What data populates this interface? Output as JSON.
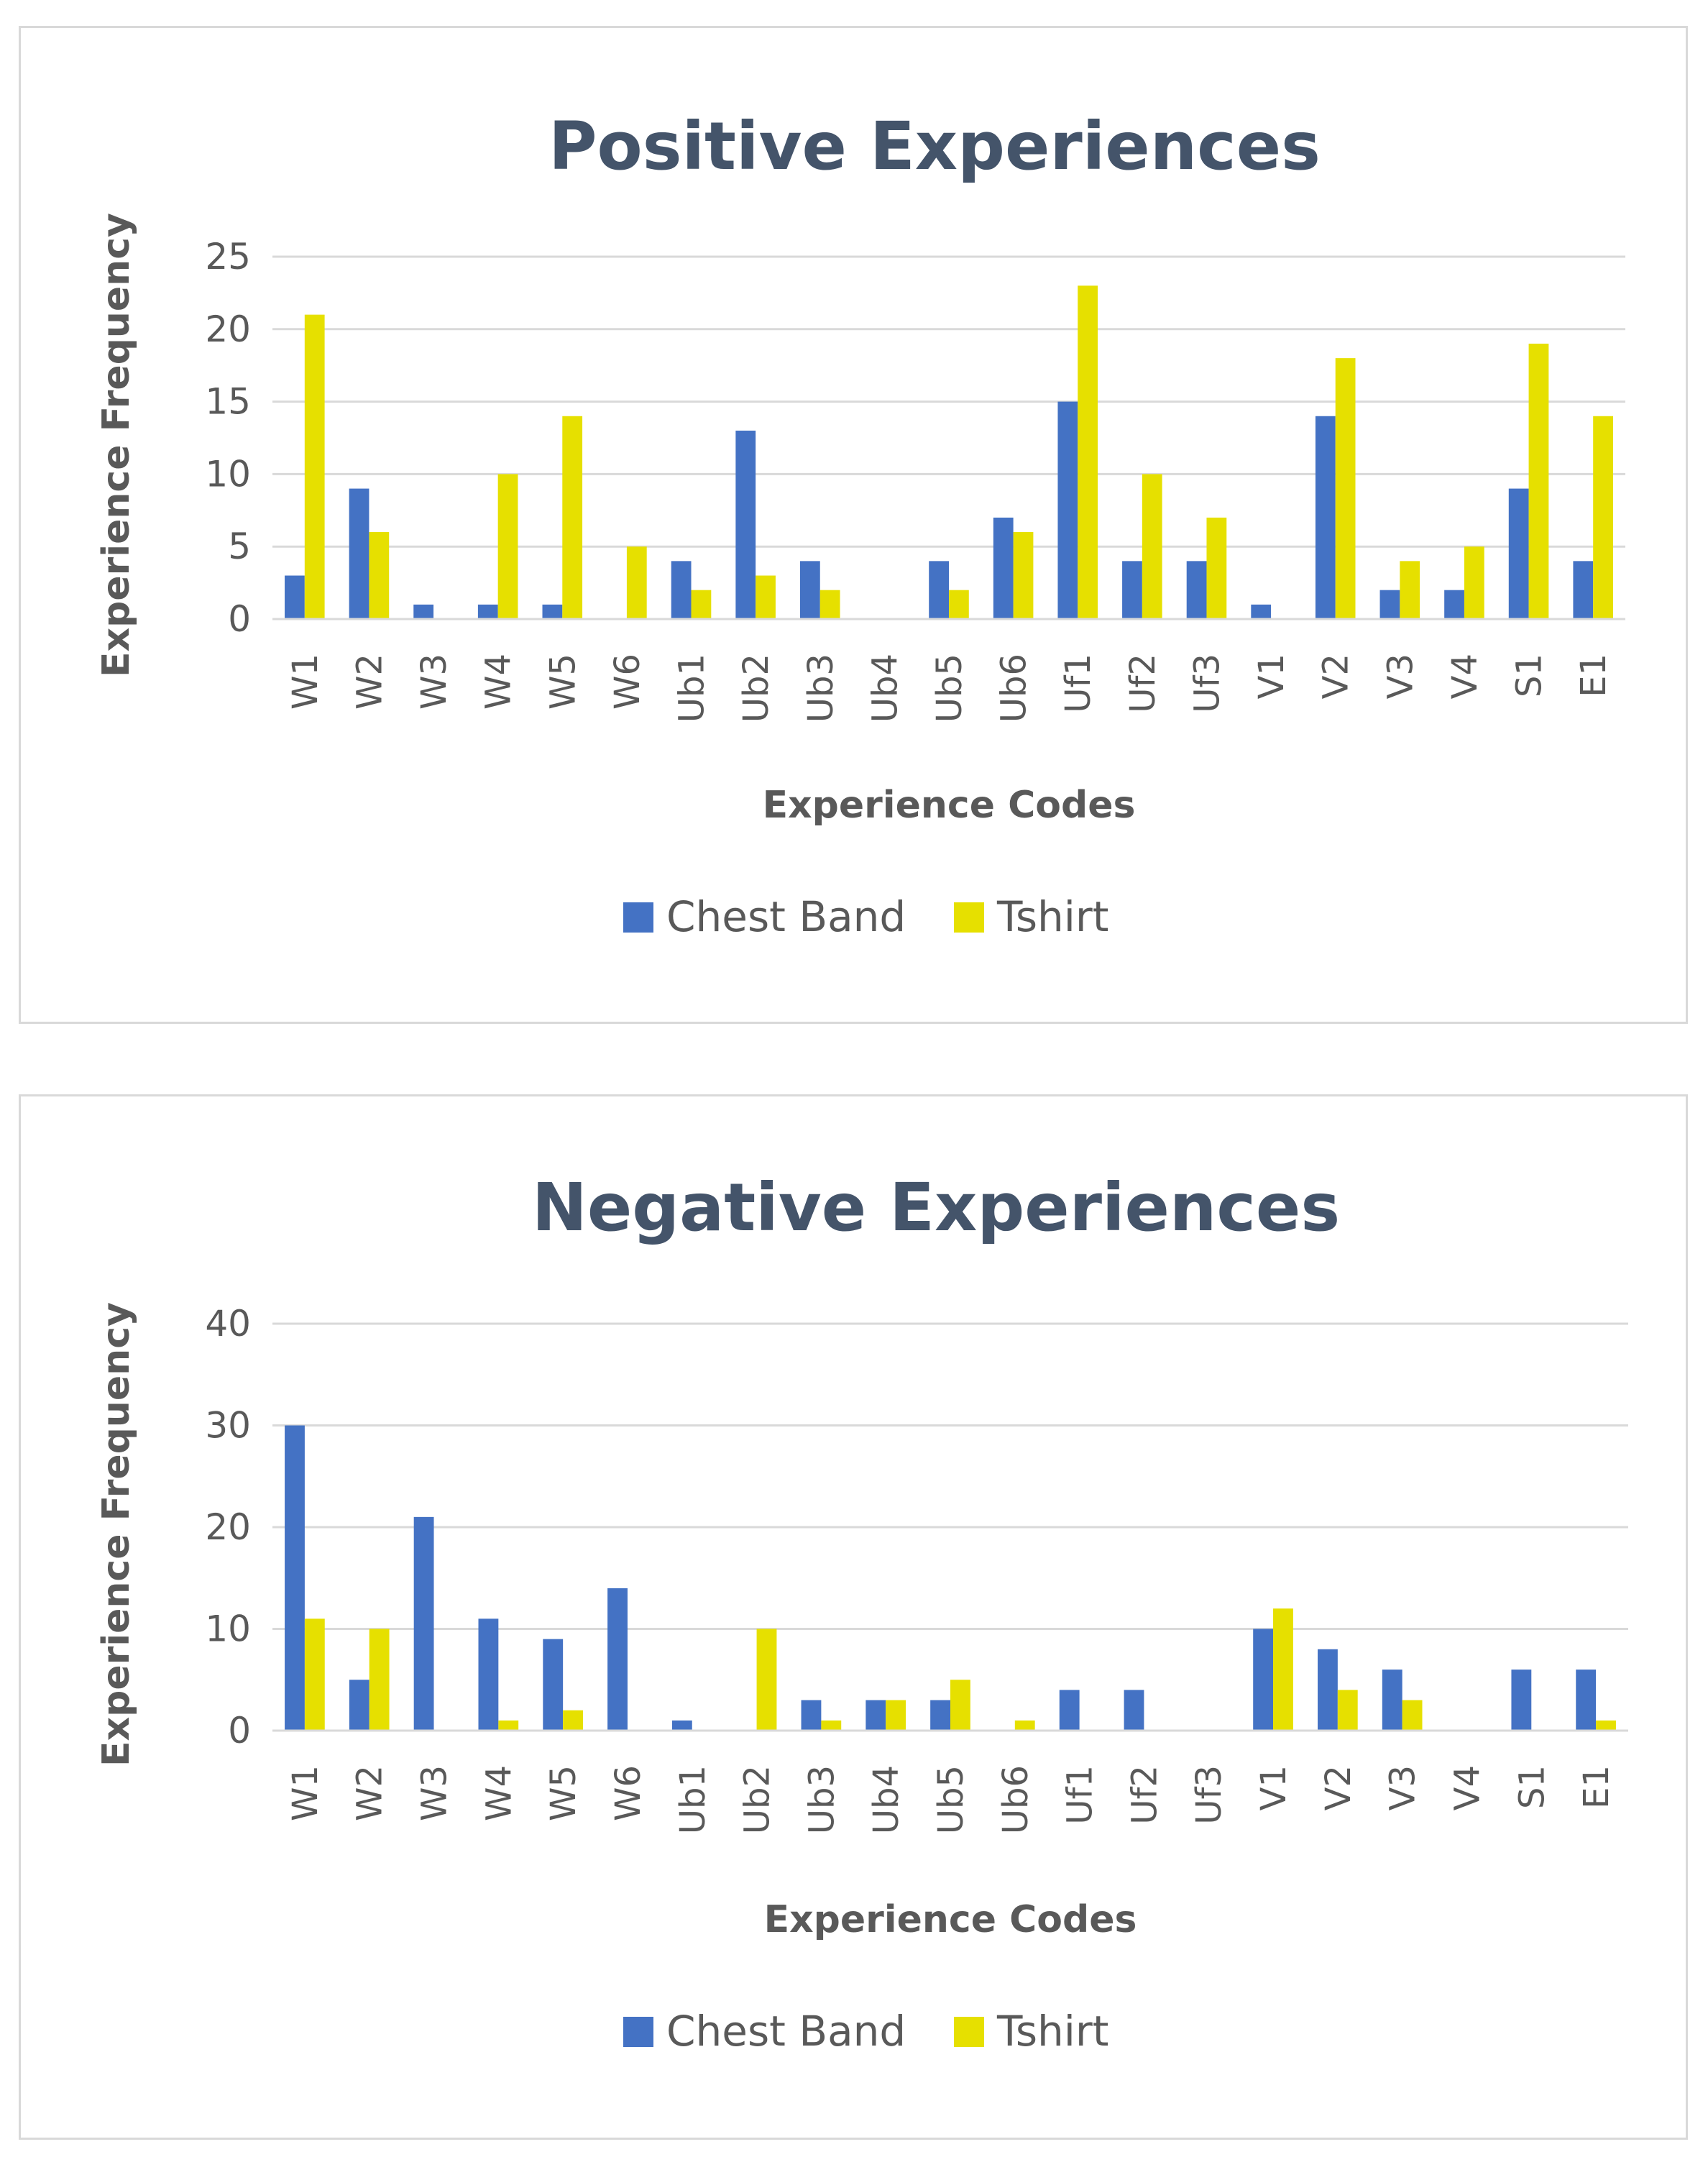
{
  "chart_data": [
    {
      "type": "bar",
      "title": "Positive Experiences",
      "xlabel": "Experience Codes",
      "ylabel": "Experience Frequency",
      "ylim": [
        0,
        25
      ],
      "yticks": [
        0,
        5,
        10,
        15,
        20,
        25
      ],
      "grid": true,
      "legend_position": "bottom",
      "categories": [
        "W1",
        "W2",
        "W3",
        "W4",
        "W5",
        "W6",
        "Ub1",
        "Ub2",
        "Ub3",
        "Ub4",
        "Ub5",
        "Ub6",
        "Uf1",
        "Uf2",
        "Uf3",
        "V1",
        "V2",
        "V3",
        "V4",
        "S1",
        "E1"
      ],
      "series": [
        {
          "name": "Chest Band",
          "color": "#4472c4",
          "values": [
            3,
            9,
            1,
            1,
            1,
            0,
            4,
            13,
            4,
            0,
            4,
            7,
            15,
            4,
            4,
            1,
            14,
            2,
            2,
            9,
            4
          ]
        },
        {
          "name": "Tshirt",
          "color": "#e6e000",
          "values": [
            21,
            6,
            0,
            10,
            14,
            5,
            2,
            3,
            2,
            0,
            2,
            6,
            23,
            10,
            7,
            0,
            18,
            4,
            5,
            19,
            14
          ]
        }
      ]
    },
    {
      "type": "bar",
      "title": "Negative Experiences",
      "xlabel": "Experience Codes",
      "ylabel": "Experience Frequency",
      "ylim": [
        0,
        40
      ],
      "yticks": [
        0,
        10,
        20,
        30,
        40
      ],
      "grid": true,
      "legend_position": "bottom",
      "categories": [
        "W1",
        "W2",
        "W3",
        "W4",
        "W5",
        "W6",
        "Ub1",
        "Ub2",
        "Ub3",
        "Ub4",
        "Ub5",
        "Ub6",
        "Uf1",
        "Uf2",
        "Uf3",
        "V1",
        "V2",
        "V3",
        "V4",
        "S1",
        "E1"
      ],
      "series": [
        {
          "name": "Chest Band",
          "color": "#4472c4",
          "values": [
            30,
            5,
            21,
            11,
            9,
            14,
            1,
            0,
            3,
            3,
            3,
            0,
            4,
            4,
            0,
            10,
            8,
            6,
            0,
            6,
            6
          ]
        },
        {
          "name": "Tshirt",
          "color": "#e6e000",
          "values": [
            11,
            10,
            0,
            1,
            2,
            0,
            0,
            10,
            1,
            3,
            5,
            1,
            0,
            0,
            0,
            12,
            4,
            3,
            0,
            0,
            1
          ]
        }
      ]
    }
  ]
}
